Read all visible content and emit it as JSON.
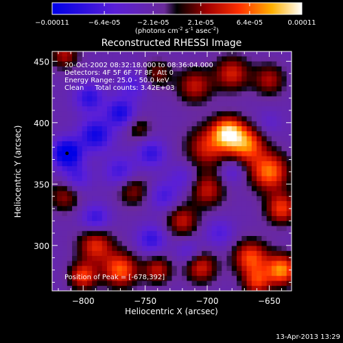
{
  "chart_data": {
    "type": "heatmap",
    "title": "Reconstructed RHESSI Image",
    "xlabel": "Heliocentric X (arcsec)",
    "ylabel": "Heliocentric Y (arcsec)",
    "xlim": [
      -825,
      -632
    ],
    "ylim": [
      263,
      458
    ],
    "xticks": [
      -800,
      -750,
      -700,
      -650
    ],
    "yticks": [
      300,
      350,
      400,
      450
    ],
    "colorbar": {
      "ticks": [
        "-0.00011",
        "-6.4e-05",
        "-2.1e-05",
        "2.1e-05",
        "6.4e-05",
        "0.00011"
      ],
      "vmin": -0.00011,
      "vmax": 0.00011,
      "unit_prefix": "(photons cm",
      "unit_sup1": "-2",
      "unit_mid": " s",
      "unit_sup2": "-1",
      "unit_mid2": " asec",
      "unit_sup3": "-2",
      "unit_suffix": ")"
    },
    "annotations": [
      "20-Oct-2002 08:32:18.000 to 08:36:04.000",
      "Detectors: 4F 5F 6F 7F 8F, Att 0",
      "Energy Range: 25.0 - 50.0 keV",
      "Clean     Total counts: 3.42E+03"
    ],
    "peak_label": "Position of Peak = [-678,392]",
    "peak": [
      -678,
      392
    ],
    "minimum_marker": [
      -813,
      375
    ],
    "blobs": [
      {
        "x": -683,
        "y": 392,
        "v": 1.0,
        "r": 9
      },
      {
        "x": -668,
        "y": 382,
        "v": 0.8,
        "r": 10
      },
      {
        "x": -650,
        "y": 360,
        "v": 0.85,
        "r": 11
      },
      {
        "x": -640,
        "y": 330,
        "v": 0.7,
        "r": 9
      },
      {
        "x": -700,
        "y": 380,
        "v": 0.6,
        "r": 12
      },
      {
        "x": -710,
        "y": 430,
        "v": 0.55,
        "r": 10
      },
      {
        "x": -680,
        "y": 440,
        "v": 0.6,
        "r": 10
      },
      {
        "x": -650,
        "y": 435,
        "v": 0.5,
        "r": 9
      },
      {
        "x": -700,
        "y": 345,
        "v": 0.55,
        "r": 10
      },
      {
        "x": -720,
        "y": 320,
        "v": 0.55,
        "r": 9
      },
      {
        "x": -740,
        "y": 440,
        "v": 0.4,
        "r": 8
      },
      {
        "x": -760,
        "y": 345,
        "v": 0.45,
        "r": 9
      },
      {
        "x": -790,
        "y": 300,
        "v": 0.65,
        "r": 10
      },
      {
        "x": -770,
        "y": 280,
        "v": 0.8,
        "r": 10
      },
      {
        "x": -800,
        "y": 275,
        "v": 0.7,
        "r": 8
      },
      {
        "x": -740,
        "y": 280,
        "v": 0.55,
        "r": 8
      },
      {
        "x": -705,
        "y": 282,
        "v": 0.6,
        "r": 9
      },
      {
        "x": -665,
        "y": 290,
        "v": 0.75,
        "r": 10
      },
      {
        "x": -640,
        "y": 280,
        "v": 0.9,
        "r": 9
      },
      {
        "x": -660,
        "y": 270,
        "v": 0.6,
        "r": 8
      },
      {
        "x": -815,
        "y": 340,
        "v": 0.45,
        "r": 9
      },
      {
        "x": -815,
        "y": 455,
        "v": 0.5,
        "r": 8
      },
      {
        "x": -755,
        "y": 395,
        "v": 0.35,
        "r": 7
      },
      {
        "x": -813,
        "y": 375,
        "v": -1.0,
        "r": 8
      },
      {
        "x": -790,
        "y": 390,
        "v": -0.7,
        "r": 9
      },
      {
        "x": -770,
        "y": 408,
        "v": -0.65,
        "r": 8
      },
      {
        "x": -795,
        "y": 420,
        "v": -0.55,
        "r": 8
      },
      {
        "x": -745,
        "y": 375,
        "v": -0.5,
        "r": 8
      },
      {
        "x": -770,
        "y": 360,
        "v": -0.45,
        "r": 9
      },
      {
        "x": -735,
        "y": 340,
        "v": -0.4,
        "r": 8
      },
      {
        "x": -745,
        "y": 305,
        "v": -0.5,
        "r": 8
      },
      {
        "x": -790,
        "y": 322,
        "v": -0.5,
        "r": 8
      },
      {
        "x": -805,
        "y": 355,
        "v": -0.4,
        "r": 8
      },
      {
        "x": -760,
        "y": 430,
        "v": -0.35,
        "r": 8
      },
      {
        "x": -720,
        "y": 355,
        "v": -0.3,
        "r": 8
      },
      {
        "x": -690,
        "y": 310,
        "v": -0.35,
        "r": 8
      },
      {
        "x": -715,
        "y": 295,
        "v": -0.3,
        "r": 7
      },
      {
        "x": -680,
        "y": 360,
        "v": -0.3,
        "r": 7
      },
      {
        "x": -650,
        "y": 400,
        "v": -0.2,
        "r": 7
      }
    ]
  },
  "footer": {
    "timestamp": "13-Apr-2013 13:29"
  }
}
